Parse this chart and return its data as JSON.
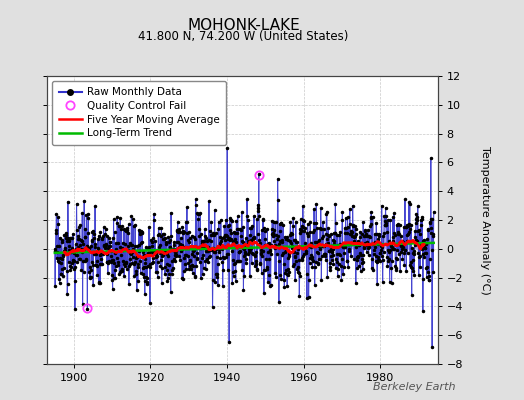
{
  "title": "MOHONK-LAKE",
  "subtitle": "41.800 N, 74.200 W (United States)",
  "ylabel": "Temperature Anomaly (°C)",
  "watermark": "Berkeley Earth",
  "xlim": [
    1893,
    1995
  ],
  "ylim": [
    -8,
    12
  ],
  "yticks": [
    -8,
    -6,
    -4,
    -2,
    0,
    2,
    4,
    6,
    8,
    10,
    12
  ],
  "xticks": [
    1900,
    1920,
    1940,
    1960,
    1980
  ],
  "background_color": "#e0e0e0",
  "plot_bg_color": "#ffffff",
  "bar_color": "#3333cc",
  "bar_color_light": "#8888ee",
  "dot_color": "#000000",
  "ma_color": "#ff0000",
  "trend_color": "#00bb00",
  "qc_color": "#ff44ff",
  "seed": 17,
  "n_months": 1188,
  "start_year": 1895.0,
  "end_year": 1994.0,
  "qc_year1": 1903.5,
  "qc_val1": -4.1,
  "qc_year2": 1948.3,
  "qc_val2": 5.1
}
